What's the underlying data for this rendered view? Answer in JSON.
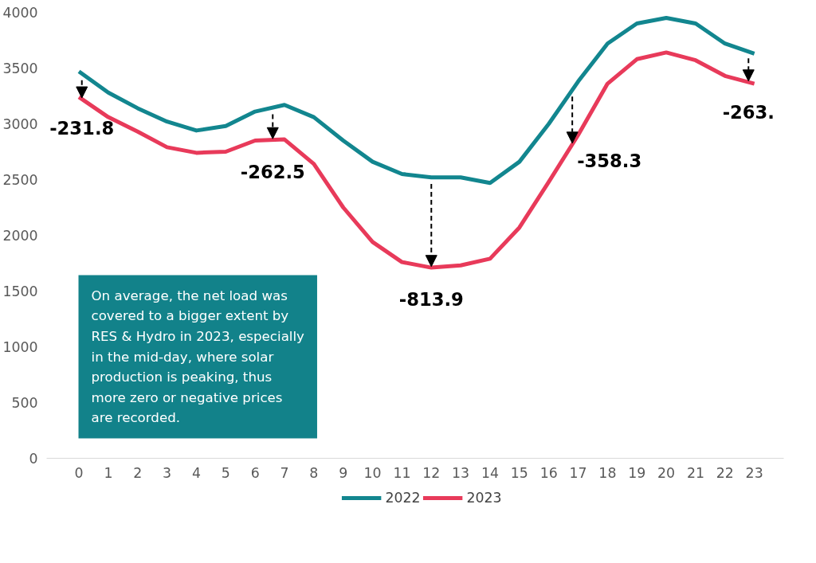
{
  "chart_data": {
    "type": "line",
    "x": [
      0,
      1,
      2,
      3,
      4,
      5,
      6,
      7,
      8,
      9,
      10,
      11,
      12,
      13,
      14,
      15,
      16,
      17,
      18,
      19,
      20,
      21,
      22,
      23
    ],
    "series": [
      {
        "name": "2022",
        "color": "#12868f",
        "values": [
          3470,
          3280,
          3140,
          3020,
          2940,
          2980,
          3110,
          3170,
          3060,
          2850,
          2660,
          2550,
          2520,
          2520,
          2470,
          2660,
          3000,
          3380,
          3720,
          3900,
          3950,
          3900,
          3720,
          3630
        ]
      },
      {
        "name": "2023",
        "color": "#e83a5a",
        "values": [
          3240,
          3060,
          2930,
          2790,
          2740,
          2750,
          2850,
          2860,
          2640,
          2250,
          1940,
          1760,
          1710,
          1730,
          1790,
          2070,
          2480,
          2900,
          3360,
          3580,
          3640,
          3570,
          3430,
          3360
        ]
      }
    ],
    "xlim": [
      -1.1,
      24
    ],
    "xticks": [
      0,
      1,
      2,
      3,
      4,
      5,
      6,
      7,
      8,
      9,
      10,
      11,
      12,
      13,
      14,
      15,
      16,
      17,
      18,
      19,
      20,
      21,
      22,
      23
    ],
    "ylim": [
      0,
      4000
    ],
    "yticks": [
      0,
      500,
      1000,
      1500,
      2000,
      2500,
      3000,
      3500,
      4000
    ],
    "grid": false,
    "legend": "bottom",
    "marker": "none",
    "line_style": "solid",
    "annotations": [
      {
        "text": "-231.8",
        "x": 0.1,
        "y": 3240
      },
      {
        "text": "-262.5",
        "x": 6.6,
        "y": 2850
      },
      {
        "text": "-813.9",
        "x": 12,
        "y": 1707
      },
      {
        "text": "-358.3",
        "x": 16.8,
        "y": 2820
      },
      {
        "text": "-263.",
        "x": 22.8,
        "y": 3380
      },
      "On average, the net load was covered to a bigger extent by RES & Hydro in 2023, especially in the mid-day, where solar production is peaking, thus more zero or negative prices are recorded."
    ]
  }
}
